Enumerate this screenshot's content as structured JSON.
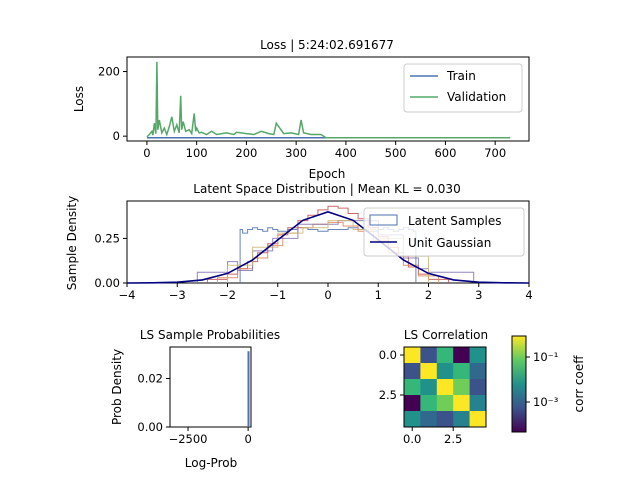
{
  "chart_data": [
    {
      "type": "line",
      "title": "Loss | 5:24:02.691677",
      "xlabel": "Epoch",
      "ylabel": "Loss",
      "xlim": [
        -40,
        768
      ],
      "ylim": [
        -15,
        245
      ],
      "xticks": [
        "0",
        "100",
        "200",
        "300",
        "400",
        "500",
        "600",
        "700"
      ],
      "yticks": [
        "0",
        "200"
      ],
      "legend_position": "upper-right",
      "series": [
        {
          "name": "Train",
          "color": "#4c72b0",
          "x": [
            0,
            100,
            200,
            300,
            350,
            400,
            500,
            600,
            700,
            730
          ],
          "y": [
            -5,
            -5,
            -5,
            -5,
            -5,
            -5,
            -5,
            -5,
            -5,
            -5
          ]
        },
        {
          "name": "Validation",
          "color": "#55a868",
          "x": [
            0,
            5,
            10,
            12,
            15,
            18,
            20,
            22,
            25,
            30,
            35,
            40,
            45,
            50,
            55,
            60,
            65,
            68,
            70,
            73,
            78,
            85,
            90,
            95,
            98,
            100,
            105,
            110,
            120,
            130,
            140,
            160,
            175,
            180,
            200,
            215,
            230,
            245,
            255,
            260,
            275,
            290,
            305,
            310,
            315,
            330,
            345,
            350,
            360,
            400,
            500,
            600,
            700,
            730
          ],
          "y": [
            -2,
            5,
            15,
            3,
            40,
            8,
            230,
            20,
            50,
            10,
            25,
            5,
            30,
            60,
            15,
            35,
            10,
            125,
            20,
            45,
            15,
            20,
            8,
            70,
            15,
            25,
            10,
            12,
            5,
            15,
            5,
            10,
            5,
            12,
            8,
            5,
            15,
            8,
            5,
            40,
            8,
            10,
            5,
            50,
            10,
            5,
            5,
            5,
            -5,
            -5,
            -5,
            -5,
            -5,
            -5
          ]
        }
      ]
    },
    {
      "type": "histogram",
      "title": "Latent Space Distribution | Mean KL = 0.030",
      "xlabel": "",
      "ylabel": "Sample Density",
      "xlim": [
        -4,
        4
      ],
      "ylim": [
        0,
        0.46
      ],
      "xticks": [
        "−4",
        "−3",
        "−2",
        "−1",
        "0",
        "1",
        "2",
        "3",
        "4"
      ],
      "yticks": [
        "0.00",
        "0.25"
      ],
      "legend_position": "upper-right",
      "series": [
        {
          "name": "Latent Samples",
          "color": "#4c72b0",
          "x": [
            -1.75,
            -1.7,
            -1.6,
            -1.5,
            -1.4,
            -1.3,
            -1.2,
            -1.1,
            -1.0,
            -0.8,
            -0.6,
            -0.4,
            -0.2,
            0,
            0.2,
            0.4,
            0.6,
            0.8,
            1.0,
            1.1,
            1.2,
            1.3,
            1.4,
            1.5,
            1.6,
            1.7,
            1.75
          ],
          "values": [
            0.3,
            0.28,
            0.3,
            0.31,
            0.3,
            0.29,
            0.31,
            0.3,
            0.29,
            0.3,
            0.31,
            0.3,
            0.29,
            0.3,
            0.3,
            0.31,
            0.3,
            0.29,
            0.3,
            0.31,
            0.3,
            0.29,
            0.3,
            0.31,
            0.3,
            0.29,
            0
          ]
        },
        {
          "color": "#c44e52",
          "x": [
            -2.4,
            -2.0,
            -1.8,
            -1.6,
            -1.4,
            -1.2,
            -1.0,
            -0.8,
            -0.6,
            -0.4,
            -0.2,
            0,
            0.2,
            0.4,
            0.6,
            0.8,
            1.0,
            1.2,
            1.4,
            1.6,
            1.8,
            2.0,
            2.4
          ],
          "values": [
            0.02,
            0.05,
            0.08,
            0.12,
            0.17,
            0.22,
            0.27,
            0.31,
            0.35,
            0.38,
            0.41,
            0.43,
            0.42,
            0.39,
            0.36,
            0.31,
            0.26,
            0.2,
            0.15,
            0.09,
            0.05,
            0.02,
            0
          ]
        },
        {
          "color": "#dd8452",
          "x": [
            -2.2,
            -1.8,
            -1.5,
            -1.2,
            -0.9,
            -0.6,
            -0.3,
            0,
            0.3,
            0.6,
            0.9,
            1.2,
            1.5,
            1.8,
            2.2
          ],
          "values": [
            0.03,
            0.08,
            0.14,
            0.21,
            0.28,
            0.31,
            0.33,
            0.34,
            0.32,
            0.29,
            0.24,
            0.17,
            0.1,
            0.04,
            0
          ]
        },
        {
          "color": "#8172b2",
          "x": [
            -2.6,
            -2.0,
            -1.8,
            -1.5,
            -1.1,
            -0.6,
            0.2,
            1.0,
            1.5,
            1.8,
            2.0,
            2.9
          ],
          "values": [
            0.06,
            0.12,
            0.07,
            0.18,
            0.25,
            0.33,
            0.35,
            0.27,
            0.14,
            0.08,
            0.06,
            0
          ]
        },
        {
          "color": "#ccb974",
          "x": [
            -2.0,
            -1.5,
            -1.0,
            -0.5,
            0,
            0.5,
            1.0,
            1.5,
            2.0
          ],
          "values": [
            0.1,
            0.2,
            0.28,
            0.31,
            0.35,
            0.3,
            0.25,
            0.15,
            0
          ]
        },
        {
          "name": "Unit Gaussian",
          "color": "#000080",
          "type": "line",
          "x": [
            -4,
            -3.5,
            -3,
            -2.5,
            -2,
            -1.5,
            -1,
            -0.5,
            0,
            0.5,
            1,
            1.5,
            2,
            2.5,
            3,
            3.5,
            4
          ],
          "y": [
            0.0001,
            0.0009,
            0.0044,
            0.0175,
            0.054,
            0.1295,
            0.242,
            0.352,
            0.399,
            0.352,
            0.242,
            0.1295,
            0.054,
            0.0175,
            0.0044,
            0.0009,
            0.0001
          ]
        }
      ]
    },
    {
      "type": "histogram",
      "title": "LS Sample Probabilities",
      "xlabel": "Log-Prob",
      "ylabel": "Prob Density",
      "xlim": [
        -3250,
        120
      ],
      "ylim": [
        0,
        0.033
      ],
      "xticks": [
        "−2500",
        "0"
      ],
      "yticks": [
        "0.00",
        "0.02"
      ],
      "series": [
        {
          "color": "#4c72b0",
          "x": [
            -4,
            -2
          ],
          "values": [
            0.031
          ]
        }
      ]
    },
    {
      "type": "heatmap",
      "title": "LS Correlation",
      "colorbar_label": "corr coeff",
      "colorbar_ticks": [
        "10⁻¹",
        "10⁻³"
      ],
      "xticks": [
        "0.0",
        "2.5"
      ],
      "yticks": [
        "0.0",
        "2.5"
      ],
      "matrix": [
        [
          "#fde725",
          "#3b528b",
          "#35b779",
          "#440154",
          "#21918c"
        ],
        [
          "#3b528b",
          "#fde725",
          "#21918c",
          "#35b779",
          "#31688e"
        ],
        [
          "#35b779",
          "#21918c",
          "#fde725",
          "#6ece58",
          "#3b528b"
        ],
        [
          "#440154",
          "#35b779",
          "#6ece58",
          "#fde725",
          "#26828e"
        ],
        [
          "#21918c",
          "#31688e",
          "#3b528b",
          "#26828e",
          "#fde725"
        ]
      ]
    }
  ]
}
